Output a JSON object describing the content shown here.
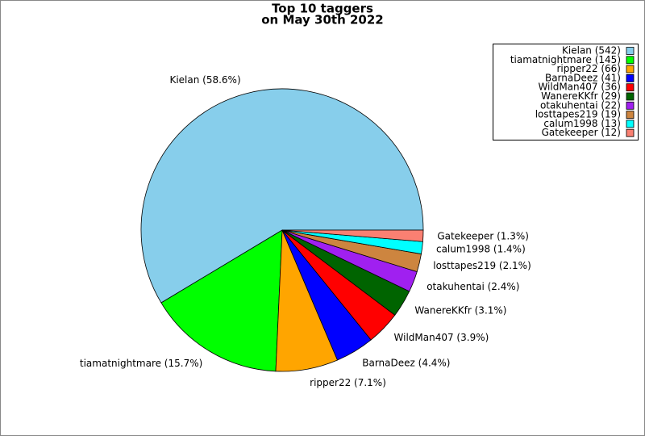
{
  "chart_data": {
    "type": "pie",
    "title": [
      "Top 10 taggers",
      "on May 30th 2022"
    ],
    "values": [
      542,
      145,
      66,
      41,
      36,
      29,
      22,
      19,
      13,
      12
    ],
    "legend_labels": [
      "Kielan (542)",
      "tiamatnightmare (145)",
      "ripper22 (66)",
      "BarnaDeez (41)",
      "WildMan407 (36)",
      "WanereKKfr (29)",
      "otakuhentai (22)",
      "losttapes219 (19)",
      "calum1998 (13)",
      "Gatekeeper (12)"
    ],
    "value_labels": [
      "Kielan (58.6%)",
      "tiamatnightmare (15.7%)",
      "ripper22 (7.1%)",
      "BarnaDeez (4.4%)",
      "WildMan407 (3.9%)",
      "WanereKKfr (3.1%)",
      "otakuhentai (2.4%)",
      "losttapes219 (2.1%)",
      "calum1998 (1.4%)",
      "Gatekeeper (1.3%)"
    ],
    "colors": [
      "#87ceeb",
      "#00ff00",
      "#ffa500",
      "#0000ff",
      "#ff0000",
      "#006400",
      "#a020f0",
      "#cd853f",
      "#00ffff",
      "#fa8072"
    ],
    "legend": "upper right"
  }
}
